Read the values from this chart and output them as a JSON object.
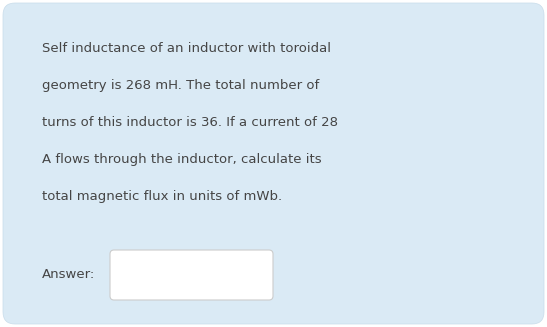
{
  "background_color": "#ffffff",
  "card_background": "#daeaf5",
  "card_border_color": "#c8dcea",
  "text_color": "#454545",
  "answer_box_color": "#ffffff",
  "answer_box_border": "#cccccc",
  "answer_label": "Answer:",
  "question_lines": [
    "Self inductance of an inductor with toroidal",
    "geometry is 268 mH. The total number of",
    "turns of this inductor is 36. If a current of 28",
    "A flows through the inductor, calculate its",
    "total magnetic flux in units of mWb."
  ],
  "font_size": 9.5,
  "answer_font_size": 9.5,
  "fig_width": 5.47,
  "fig_height": 3.27,
  "dpi": 100
}
